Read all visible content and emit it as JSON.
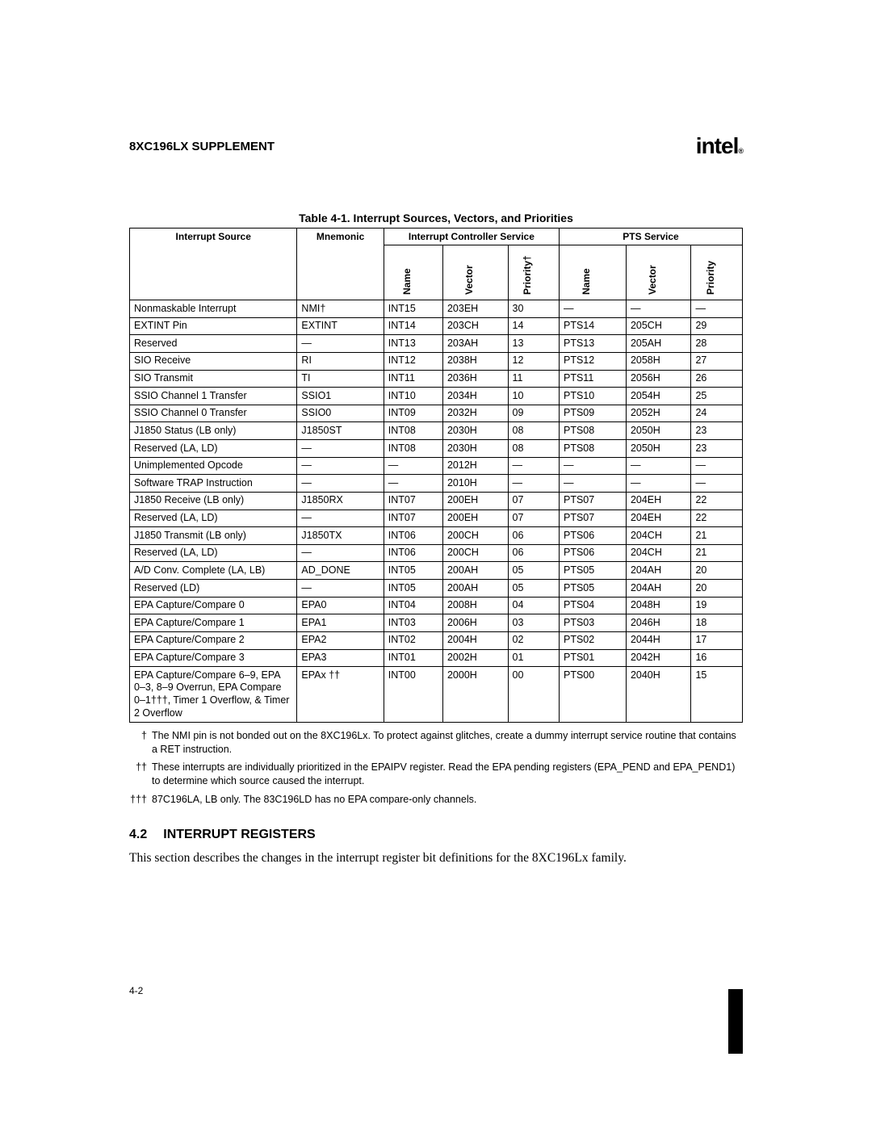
{
  "header": {
    "docTitle": "8XC196LX SUPPLEMENT",
    "logo": "intel",
    "logoSuffix": "®"
  },
  "table": {
    "caption": "Table 4-1. Interrupt Sources, Vectors, and Priorities",
    "headers": {
      "interruptSource": "Interrupt Source",
      "mnemonic": "Mnemonic",
      "icService": "Interrupt Controller Service",
      "ptsService": "PTS Service",
      "name": "Name",
      "vector": "Vector",
      "priority": "Priority",
      "priorityDagger": "Priority†"
    },
    "rows": [
      {
        "src": "Nonmaskable Interrupt",
        "mnem": "NMI†",
        "in": "INT15",
        "iv": "203EH",
        "ip": "30",
        "pn": "—",
        "pv": "—",
        "pp": "—"
      },
      {
        "src": "EXTINT Pin",
        "mnem": "EXTINT",
        "in": "INT14",
        "iv": "203CH",
        "ip": "14",
        "pn": "PTS14",
        "pv": "205CH",
        "pp": "29"
      },
      {
        "src": "Reserved",
        "mnem": "—",
        "in": "INT13",
        "iv": "203AH",
        "ip": "13",
        "pn": "PTS13",
        "pv": "205AH",
        "pp": "28"
      },
      {
        "src": "SIO Receive",
        "mnem": "RI",
        "in": "INT12",
        "iv": "2038H",
        "ip": "12",
        "pn": "PTS12",
        "pv": "2058H",
        "pp": "27"
      },
      {
        "src": "SIO Transmit",
        "mnem": "TI",
        "in": "INT11",
        "iv": "2036H",
        "ip": "11",
        "pn": "PTS11",
        "pv": "2056H",
        "pp": "26"
      },
      {
        "src": "SSIO Channel 1 Transfer",
        "mnem": "SSIO1",
        "in": "INT10",
        "iv": "2034H",
        "ip": "10",
        "pn": "PTS10",
        "pv": "2054H",
        "pp": "25"
      },
      {
        "src": "SSIO Channel 0 Transfer",
        "mnem": "SSIO0",
        "in": "INT09",
        "iv": "2032H",
        "ip": "09",
        "pn": "PTS09",
        "pv": "2052H",
        "pp": "24"
      },
      {
        "src": "J1850 Status (LB only)",
        "mnem": "J1850ST",
        "in": "INT08",
        "iv": "2030H",
        "ip": "08",
        "pn": "PTS08",
        "pv": "2050H",
        "pp": "23"
      },
      {
        "src": "Reserved (LA, LD)",
        "mnem": "—",
        "in": "INT08",
        "iv": "2030H",
        "ip": "08",
        "pn": "PTS08",
        "pv": "2050H",
        "pp": "23"
      },
      {
        "src": "Unimplemented Opcode",
        "mnem": "—",
        "in": "—",
        "iv": "2012H",
        "ip": "—",
        "pn": "—",
        "pv": "—",
        "pp": "—"
      },
      {
        "src": "Software TRAP Instruction",
        "mnem": "—",
        "in": "—",
        "iv": "2010H",
        "ip": "—",
        "pn": "—",
        "pv": "—",
        "pp": "—"
      },
      {
        "src": "J1850 Receive (LB only)",
        "mnem": "J1850RX",
        "in": "INT07",
        "iv": "200EH",
        "ip": "07",
        "pn": "PTS07",
        "pv": "204EH",
        "pp": "22"
      },
      {
        "src": "Reserved (LA, LD)",
        "mnem": "—",
        "in": "INT07",
        "iv": "200EH",
        "ip": "07",
        "pn": "PTS07",
        "pv": "204EH",
        "pp": "22"
      },
      {
        "src": "J1850 Transmit (LB only)",
        "mnem": "J1850TX",
        "in": "INT06",
        "iv": "200CH",
        "ip": "06",
        "pn": "PTS06",
        "pv": "204CH",
        "pp": "21"
      },
      {
        "src": "Reserved (LA, LD)",
        "mnem": "—",
        "in": "INT06",
        "iv": "200CH",
        "ip": "06",
        "pn": "PTS06",
        "pv": "204CH",
        "pp": "21"
      },
      {
        "src": "A/D Conv. Complete (LA, LB)",
        "mnem": "AD_DONE",
        "in": "INT05",
        "iv": "200AH",
        "ip": "05",
        "pn": "PTS05",
        "pv": "204AH",
        "pp": "20"
      },
      {
        "src": "Reserved (LD)",
        "mnem": "—",
        "in": "INT05",
        "iv": "200AH",
        "ip": "05",
        "pn": "PTS05",
        "pv": "204AH",
        "pp": "20"
      },
      {
        "src": "EPA Capture/Compare 0",
        "mnem": "EPA0",
        "in": "INT04",
        "iv": "2008H",
        "ip": "04",
        "pn": "PTS04",
        "pv": "2048H",
        "pp": "19"
      },
      {
        "src": "EPA Capture/Compare 1",
        "mnem": "EPA1",
        "in": "INT03",
        "iv": "2006H",
        "ip": "03",
        "pn": "PTS03",
        "pv": "2046H",
        "pp": "18"
      },
      {
        "src": "EPA Capture/Compare 2",
        "mnem": "EPA2",
        "in": "INT02",
        "iv": "2004H",
        "ip": "02",
        "pn": "PTS02",
        "pv": "2044H",
        "pp": "17"
      },
      {
        "src": "EPA Capture/Compare 3",
        "mnem": "EPA3",
        "in": "INT01",
        "iv": "2002H",
        "ip": "01",
        "pn": "PTS01",
        "pv": "2042H",
        "pp": "16"
      },
      {
        "src": "EPA Capture/Compare 6–9, EPA 0–3, 8–9 Overrun, EPA Compare 0–1†††, Timer 1 Overflow, & Timer 2 Overflow",
        "mnem": "EPAx ††",
        "in": "INT00",
        "iv": "2000H",
        "ip": "00",
        "pn": "PTS00",
        "pv": "2040H",
        "pp": "15"
      }
    ]
  },
  "footnotes": [
    {
      "mark": "†",
      "text": "The NMI pin is not bonded out on the 8XC196Lx. To protect against glitches, create a dummy interrupt service routine that contains a RET instruction."
    },
    {
      "mark": "††",
      "text": "These interrupts are individually prioritized in the EPAIPV register. Read the EPA pending registers (EPA_PEND and EPA_PEND1) to determine which source caused the interrupt."
    },
    {
      "mark": "†††",
      "text": "87C196LA, LB only. The 83C196LD has no EPA compare-only channels."
    }
  ],
  "section": {
    "number": "4.2",
    "title": "INTERRUPT REGISTERS",
    "body": "This section describes the changes in the interrupt register bit definitions for the 8XC196Lx family."
  },
  "pageNumber": "4-2"
}
